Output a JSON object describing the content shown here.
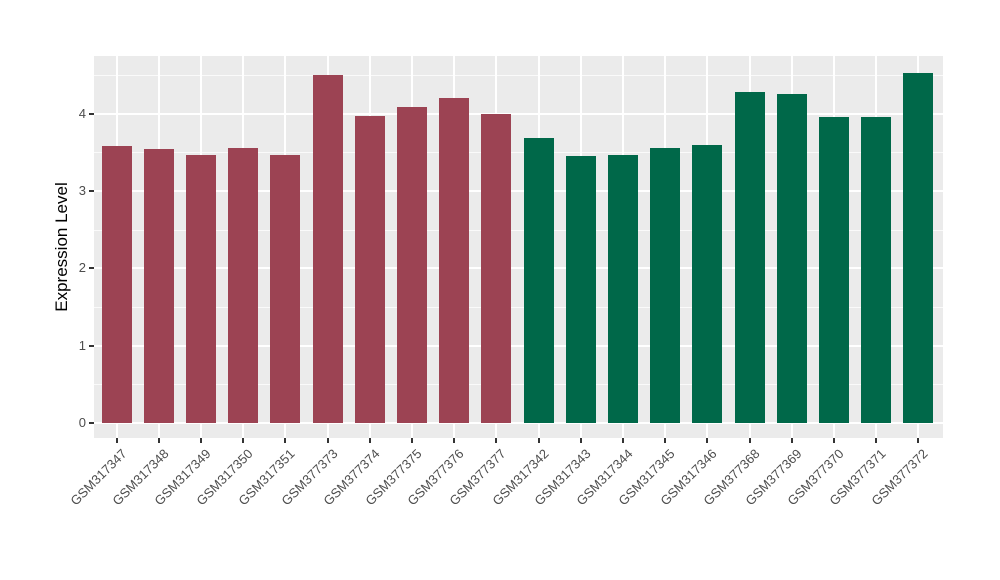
{
  "chart_data": {
    "type": "bar",
    "title": "",
    "xlabel": "",
    "ylabel": "Expression Level",
    "ylim": [
      0,
      4.78
    ],
    "yticks": [
      0,
      1,
      2,
      3,
      4
    ],
    "yticks_minor": [
      0.5,
      1.5,
      2.5,
      3.5,
      4.5
    ],
    "grid": "on",
    "legend_position": "none",
    "categories": [
      "GSM317347",
      "GSM317348",
      "GSM317349",
      "GSM317350",
      "GSM317351",
      "GSM377373",
      "GSM377374",
      "GSM377375",
      "GSM377376",
      "GSM377377",
      "GSM317342",
      "GSM317343",
      "GSM317344",
      "GSM317345",
      "GSM317346",
      "GSM377368",
      "GSM377369",
      "GSM377370",
      "GSM377371",
      "GSM377372"
    ],
    "values": [
      3.58,
      3.54,
      3.47,
      3.55,
      3.47,
      4.5,
      3.97,
      4.08,
      4.2,
      3.99,
      3.68,
      3.45,
      3.46,
      3.55,
      3.59,
      4.28,
      4.25,
      3.95,
      3.96,
      4.52
    ],
    "bar_color_keys": [
      "red",
      "red",
      "red",
      "red",
      "red",
      "red",
      "red",
      "red",
      "red",
      "red",
      "green",
      "green",
      "green",
      "green",
      "green",
      "green",
      "green",
      "green",
      "green",
      "green"
    ],
    "colors": {
      "red": "#9C4353",
      "green": "#006849",
      "panel_bg": "#EBEBEB",
      "grid_major": "#FFFFFF",
      "grid_minor": "#FFFFFF",
      "tick_label": "#4D4D4D",
      "axis_title": "#000000",
      "background": "#FFFFFF"
    }
  }
}
